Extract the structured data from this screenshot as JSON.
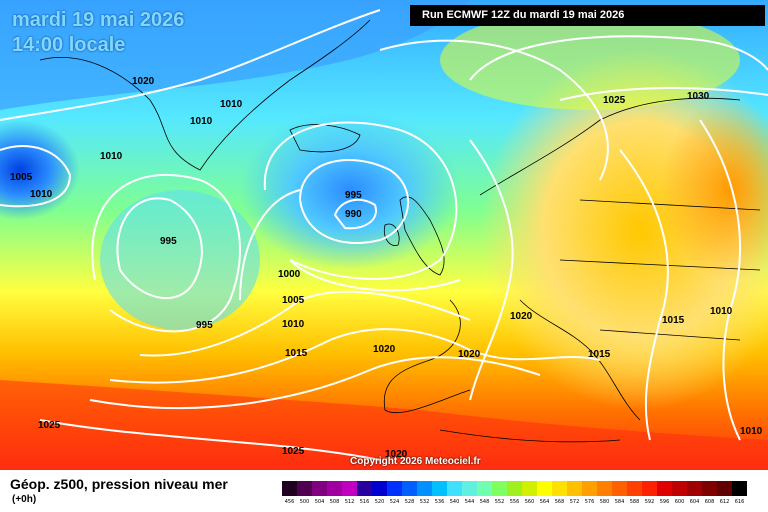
{
  "header": {
    "date_line": "mardi 19 mai 2026",
    "time_line": "14:00 locale",
    "run_info": "Run ECMWF 12Z du mardi 19 mai 2026"
  },
  "copyright": "Copyright 2026 Meteociel.fr",
  "footer": {
    "title": "Géop. z500, pression niveau mer",
    "subtitle": "(+0h)"
  },
  "isobar_labels": [
    "1020",
    "1010",
    "1010",
    "1010",
    "1005",
    "1010",
    "995",
    "995",
    "990",
    "995",
    "1000",
    "1005",
    "1010",
    "1015",
    "1020",
    "1020",
    "1020",
    "1025",
    "1025",
    "1020",
    "1025",
    "1030",
    "1015",
    "1015",
    "1010",
    "1010"
  ],
  "scale": {
    "labels": [
      "456",
      "500",
      "504",
      "508",
      "512",
      "516",
      "520",
      "524",
      "528",
      "532",
      "536",
      "540",
      "544",
      "548",
      "552",
      "556",
      "560",
      "564",
      "568",
      "572",
      "576",
      "580",
      "584",
      "588",
      "592",
      "596",
      "600",
      "604",
      "608",
      "612",
      "616"
    ],
    "colors": [
      "#200020",
      "#500050",
      "#800080",
      "#a000a0",
      "#c000c0",
      "#2800a0",
      "#0000d0",
      "#0030ff",
      "#0060ff",
      "#0090ff",
      "#00c0ff",
      "#40e0ff",
      "#60f0e0",
      "#70ffb0",
      "#80ff60",
      "#a0f020",
      "#d0f000",
      "#ffff00",
      "#ffe000",
      "#ffc000",
      "#ffa000",
      "#ff8000",
      "#ff6000",
      "#ff4000",
      "#ff2000",
      "#e00000",
      "#c00000",
      "#a00000",
      "#800000",
      "#600000",
      "#000000"
    ]
  }
}
